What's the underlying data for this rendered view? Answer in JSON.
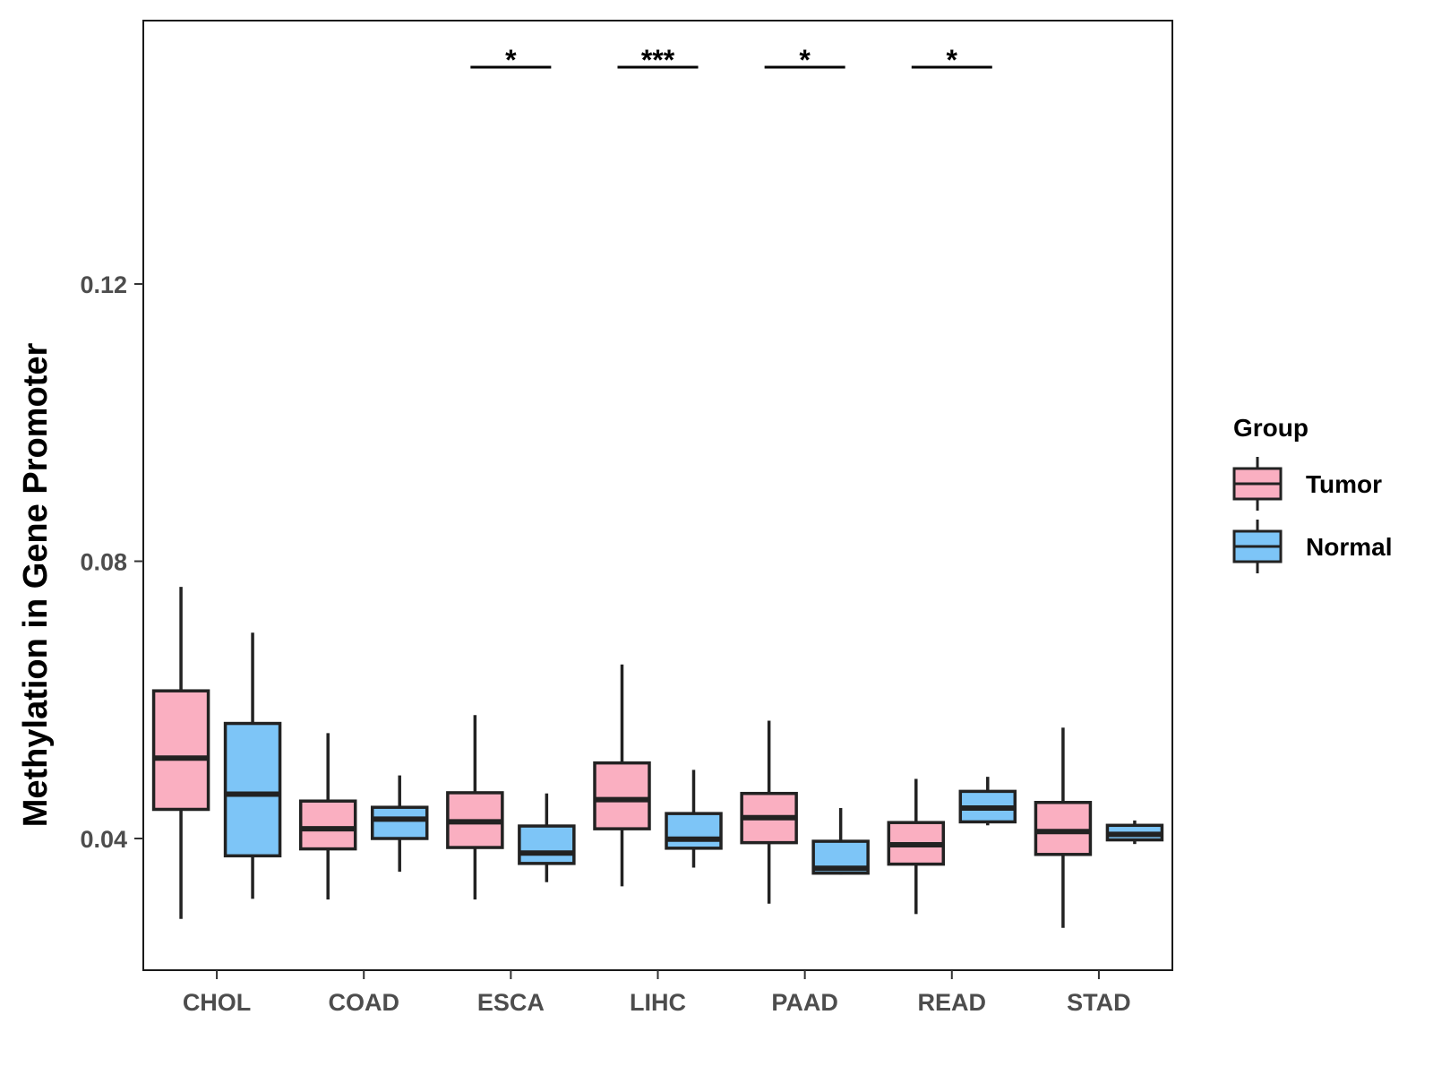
{
  "chart_data": {
    "type": "boxplot",
    "title": "",
    "xlabel": "",
    "ylabel": "Methylation in Gene Promoter",
    "ylim": [
      0.021,
      0.158
    ],
    "yticks": [
      0.04,
      0.08,
      0.12
    ],
    "ytick_labels": [
      "0.04",
      "0.08",
      "0.12"
    ],
    "grid": false,
    "categories": [
      "CHOL",
      "COAD",
      "ESCA",
      "LIHC",
      "PAAD",
      "READ",
      "STAD"
    ],
    "legend": {
      "title": "Group",
      "position": "right",
      "entries": [
        "Tumor",
        "Normal"
      ]
    },
    "series": [
      {
        "name": "Tumor",
        "color": "#FAAFC1",
        "boxes": [
          {
            "min": 0.0284,
            "q1": 0.0442,
            "median": 0.0516,
            "q3": 0.0613,
            "max": 0.0763
          },
          {
            "min": 0.0312,
            "q1": 0.0385,
            "median": 0.0414,
            "q3": 0.0454,
            "max": 0.0552
          },
          {
            "min": 0.0312,
            "q1": 0.0387,
            "median": 0.0424,
            "q3": 0.0466,
            "max": 0.0578
          },
          {
            "min": 0.0331,
            "q1": 0.0414,
            "median": 0.0456,
            "q3": 0.0509,
            "max": 0.0651
          },
          {
            "min": 0.0306,
            "q1": 0.0394,
            "median": 0.043,
            "q3": 0.0465,
            "max": 0.057
          },
          {
            "min": 0.0291,
            "q1": 0.0363,
            "median": 0.0391,
            "q3": 0.0423,
            "max": 0.0486
          },
          {
            "min": 0.0271,
            "q1": 0.0377,
            "median": 0.041,
            "q3": 0.0452,
            "max": 0.056
          }
        ]
      },
      {
        "name": "Normal",
        "color": "#7DC5F7",
        "boxes": [
          {
            "min": 0.0313,
            "q1": 0.0375,
            "median": 0.0464,
            "q3": 0.0566,
            "max": 0.0697
          },
          {
            "min": 0.0352,
            "q1": 0.04,
            "median": 0.0428,
            "q3": 0.0445,
            "max": 0.0491
          },
          {
            "min": 0.0337,
            "q1": 0.0364,
            "median": 0.0379,
            "q3": 0.0418,
            "max": 0.0465
          },
          {
            "min": 0.0358,
            "q1": 0.0386,
            "median": 0.0399,
            "q3": 0.0436,
            "max": 0.0499
          },
          {
            "min": 0.0348,
            "q1": 0.035,
            "median": 0.0357,
            "q3": 0.0396,
            "max": 0.0444
          },
          {
            "min": 0.0419,
            "q1": 0.0424,
            "median": 0.0444,
            "q3": 0.0468,
            "max": 0.0489
          },
          {
            "min": 0.0392,
            "q1": 0.0398,
            "median": 0.0406,
            "q3": 0.0419,
            "max": 0.0426
          }
        ]
      }
    ],
    "significance": [
      {
        "category": "ESCA",
        "label": "*"
      },
      {
        "category": "LIHC",
        "label": "***"
      },
      {
        "category": "PAAD",
        "label": "*"
      },
      {
        "category": "READ",
        "label": "*"
      }
    ]
  }
}
